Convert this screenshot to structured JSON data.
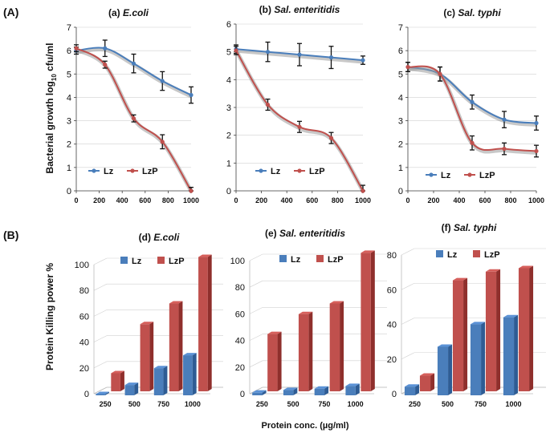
{
  "panel_labels": {
    "a": "(A)",
    "b": "(B)"
  },
  "ylabels": {
    "top_prefix": "Bacterial growth log",
    "top_sub": "10",
    "top_suffix": " cfu/ml",
    "bottom": "Protein Killing power %"
  },
  "xlabel_bottom": "Protein conc. (µg/ml)",
  "colors": {
    "lz": "#4A7EBB",
    "lzp": "#C0504D",
    "lz_light": "#5B92D6",
    "lzp_light": "#D65F5B",
    "lz_dark": "#2E5C94",
    "lzp_dark": "#8F2F2C",
    "grid": "#d0d0d0",
    "axis": "#404040"
  },
  "chart_data": [
    {
      "type": "line",
      "title_prefix": "(a) ",
      "title_italic": "E.coli",
      "x": [
        0,
        250,
        500,
        750,
        1000
      ],
      "xticks": [
        "0",
        "200",
        "400",
        "600",
        "800",
        "1000"
      ],
      "ylim": [
        0,
        7
      ],
      "yticks": [
        "0",
        "1",
        "2",
        "3",
        "4",
        "5",
        "6",
        "7"
      ],
      "series": [
        {
          "name": "Lz",
          "values": [
            6.0,
            6.1,
            5.45,
            4.7,
            4.1
          ],
          "err": [
            0.15,
            0.35,
            0.4,
            0.4,
            0.35
          ]
        },
        {
          "name": "LzP",
          "values": [
            6.1,
            5.4,
            3.1,
            2.1,
            0.0
          ],
          "err": [
            0.15,
            0.15,
            0.15,
            0.3,
            0.15
          ]
        }
      ],
      "legend": [
        "Lz",
        "LzP"
      ]
    },
    {
      "type": "line",
      "title_prefix": "(b) ",
      "title_italic": "Sal. enteritidis",
      "x": [
        0,
        250,
        500,
        750,
        1000
      ],
      "xticks": [
        "0",
        "200",
        "400",
        "600",
        "800",
        "1000"
      ],
      "ylim": [
        0,
        6
      ],
      "yticks": [
        "0",
        "1",
        "2",
        "3",
        "4",
        "5",
        "6"
      ],
      "series": [
        {
          "name": "Lz",
          "values": [
            5.1,
            5.0,
            4.9,
            4.8,
            4.7
          ],
          "err": [
            0.15,
            0.35,
            0.4,
            0.4,
            0.15
          ]
        },
        {
          "name": "LzP",
          "values": [
            5.05,
            3.1,
            2.3,
            1.9,
            0.0
          ],
          "err": [
            0.15,
            0.2,
            0.2,
            0.2,
            0.2
          ]
        }
      ],
      "legend": [
        "Lz",
        "LzP"
      ]
    },
    {
      "type": "line",
      "title_prefix": "(c) ",
      "title_italic": "Sal. typhi",
      "x": [
        0,
        250,
        500,
        750,
        1000
      ],
      "xticks": [
        "0",
        "200",
        "400",
        "600",
        "800",
        "1000"
      ],
      "ylim": [
        0,
        7
      ],
      "yticks": [
        "0",
        "1",
        "2",
        "3",
        "4",
        "5",
        "6",
        "7"
      ],
      "series": [
        {
          "name": "Lz",
          "values": [
            5.3,
            5.0,
            3.8,
            3.05,
            2.9
          ],
          "err": [
            0.2,
            0.3,
            0.3,
            0.35,
            0.3
          ]
        },
        {
          "name": "LzP",
          "values": [
            5.3,
            5.0,
            2.05,
            1.8,
            1.7
          ],
          "err": [
            0.2,
            0.3,
            0.3,
            0.25,
            0.25
          ]
        }
      ],
      "legend": [
        "Lz",
        "LzP"
      ]
    },
    {
      "type": "bar",
      "title_prefix": "(d) ",
      "title_italic": "E.coli",
      "categories": [
        "250",
        "500",
        "750",
        "1000"
      ],
      "ylim": [
        0,
        100
      ],
      "yticks": [
        "0",
        "20",
        "40",
        "60",
        "80",
        "100"
      ],
      "series": [
        {
          "name": "Lz",
          "values": [
            0,
            8,
            21,
            31
          ]
        },
        {
          "name": "LzP",
          "values": [
            14,
            52,
            68,
            104
          ]
        }
      ],
      "legend": [
        "Lz",
        "LzP"
      ]
    },
    {
      "type": "bar",
      "title_prefix": "(e) ",
      "title_italic": "Sal. enteritidis",
      "categories": [
        "250",
        "500",
        "750",
        "1000"
      ],
      "ylim": [
        0,
        100
      ],
      "yticks": [
        "0",
        "20",
        "40",
        "60",
        "80",
        "100"
      ],
      "series": [
        {
          "name": "Lz",
          "values": [
            2,
            4,
            5,
            7
          ]
        },
        {
          "name": "LzP",
          "values": [
            43,
            58,
            66,
            104
          ]
        }
      ],
      "legend": [
        "Lz",
        "LzP"
      ]
    },
    {
      "type": "bar",
      "title_prefix": "(f) ",
      "title_italic": "Sal. typhi",
      "categories": [
        "250",
        "500",
        "750",
        "1000"
      ],
      "ylim": [
        0,
        80
      ],
      "yticks": [
        "0",
        "20",
        "40",
        "60",
        "80"
      ],
      "series": [
        {
          "name": "Lz",
          "values": [
            5,
            28,
            41,
            45
          ]
        },
        {
          "name": "LzP",
          "values": [
            9,
            64,
            69,
            71
          ]
        }
      ],
      "legend": [
        "Lz",
        "LzP"
      ]
    }
  ]
}
